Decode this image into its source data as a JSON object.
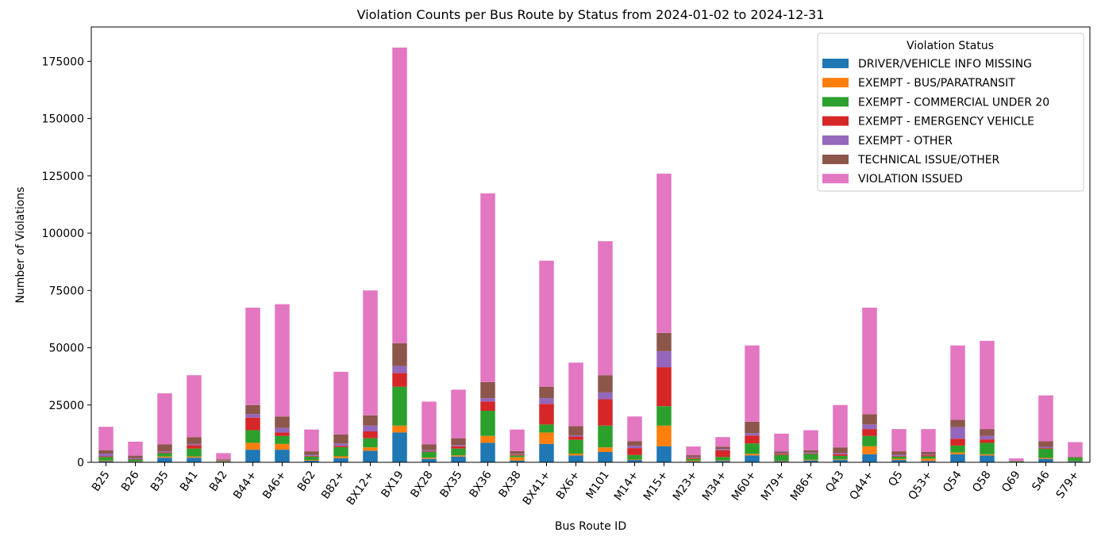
{
  "chart_data": {
    "type": "bar",
    "stacked": true,
    "title": "Violation Counts per Bus Route by Status from 2024-01-02 to 2024-12-31",
    "xlabel": "Bus Route ID",
    "ylabel": "Number of Violations",
    "ylim": [
      0,
      190000
    ],
    "yticks": [
      0,
      25000,
      50000,
      75000,
      100000,
      125000,
      150000,
      175000
    ],
    "grid": false,
    "legend_title": "Violation Status",
    "legend_position": "top-right",
    "categories": [
      "B25",
      "B26",
      "B35",
      "B41",
      "B42",
      "B44+",
      "B46+",
      "B62",
      "B82+",
      "BX12+",
      "BX19",
      "BX28",
      "BX35",
      "BX36",
      "BX38",
      "BX41+",
      "BX6+",
      "M101",
      "M14+",
      "M15+",
      "M23+",
      "M34+",
      "M60+",
      "M79+",
      "M86+",
      "Q43",
      "Q44+",
      "Q5",
      "Q53+",
      "Q54",
      "Q58",
      "Q69",
      "S46",
      "S79+"
    ],
    "series": [
      {
        "name": "DRIVER/VEHICLE INFO MISSING",
        "color": "#1f77b4",
        "values": [
          500,
          300,
          2000,
          2000,
          300,
          5500,
          5500,
          700,
          1800,
          5000,
          13000,
          1500,
          2500,
          8500,
          700,
          8000,
          3000,
          4500,
          1000,
          7000,
          400,
          600,
          3000,
          500,
          800,
          1000,
          3500,
          1000,
          600,
          3500,
          3000,
          100,
          1500,
          400
        ]
      },
      {
        "name": "EXEMPT - BUS/PARATRANSIT",
        "color": "#ff7f0e",
        "values": [
          300,
          100,
          500,
          500,
          100,
          3000,
          2500,
          300,
          800,
          1500,
          3000,
          500,
          500,
          3000,
          1500,
          5000,
          800,
          2000,
          200,
          9000,
          300,
          200,
          700,
          200,
          300,
          300,
          3500,
          500,
          1000,
          800,
          500,
          50,
          400,
          100
        ]
      },
      {
        "name": "EXEMPT - COMMERCIAL UNDER 20",
        "color": "#2ca02c",
        "values": [
          1500,
          800,
          1500,
          3500,
          200,
          5500,
          3500,
          1500,
          4000,
          4000,
          17000,
          2500,
          3000,
          11000,
          800,
          3500,
          6000,
          9500,
          2000,
          8500,
          800,
          1500,
          4500,
          2500,
          2500,
          1500,
          4500,
          1000,
          1000,
          3000,
          5000,
          200,
          4000,
          1500
        ]
      },
      {
        "name": "EXEMPT - EMERGENCY VEHICLE",
        "color": "#d62728",
        "values": [
          300,
          200,
          400,
          1500,
          100,
          5500,
          1500,
          300,
          600,
          3000,
          6000,
          300,
          1000,
          4000,
          400,
          9000,
          1500,
          11500,
          3000,
          17000,
          500,
          3000,
          3500,
          500,
          300,
          700,
          3000,
          300,
          500,
          3000,
          1500,
          50,
          300,
          100
        ]
      },
      {
        "name": "EXEMPT - OTHER",
        "color": "#9467bd",
        "values": [
          1200,
          500,
          400,
          500,
          100,
          1500,
          2000,
          500,
          1000,
          2500,
          3000,
          500,
          500,
          1500,
          300,
          2500,
          500,
          3000,
          1000,
          7000,
          300,
          500,
          1000,
          300,
          400,
          500,
          2000,
          500,
          300,
          5000,
          1500,
          50,
          500,
          100
        ]
      },
      {
        "name": "TECHNICAL ISSUE/OTHER",
        "color": "#8c564b",
        "values": [
          1500,
          1000,
          3000,
          3000,
          500,
          4000,
          5000,
          1500,
          4000,
          4500,
          10000,
          2500,
          3000,
          7000,
          1200,
          5000,
          4000,
          7500,
          2000,
          8000,
          800,
          1000,
          5000,
          700,
          1000,
          2500,
          4500,
          1500,
          1100,
          3200,
          3000,
          150,
          2500,
          300
        ]
      },
      {
        "name": "VIOLATION ISSUED",
        "color": "#e377c2",
        "values": [
          10200,
          6100,
          22300,
          27000,
          2700,
          42500,
          49000,
          9500,
          27300,
          54500,
          129000,
          18700,
          21200,
          82400,
          9400,
          55000,
          27700,
          58500,
          10800,
          69500,
          3800,
          4200,
          33300,
          7800,
          8700,
          18500,
          46500,
          9700,
          10000,
          32500,
          38500,
          1100,
          20000,
          6300
        ]
      }
    ]
  }
}
